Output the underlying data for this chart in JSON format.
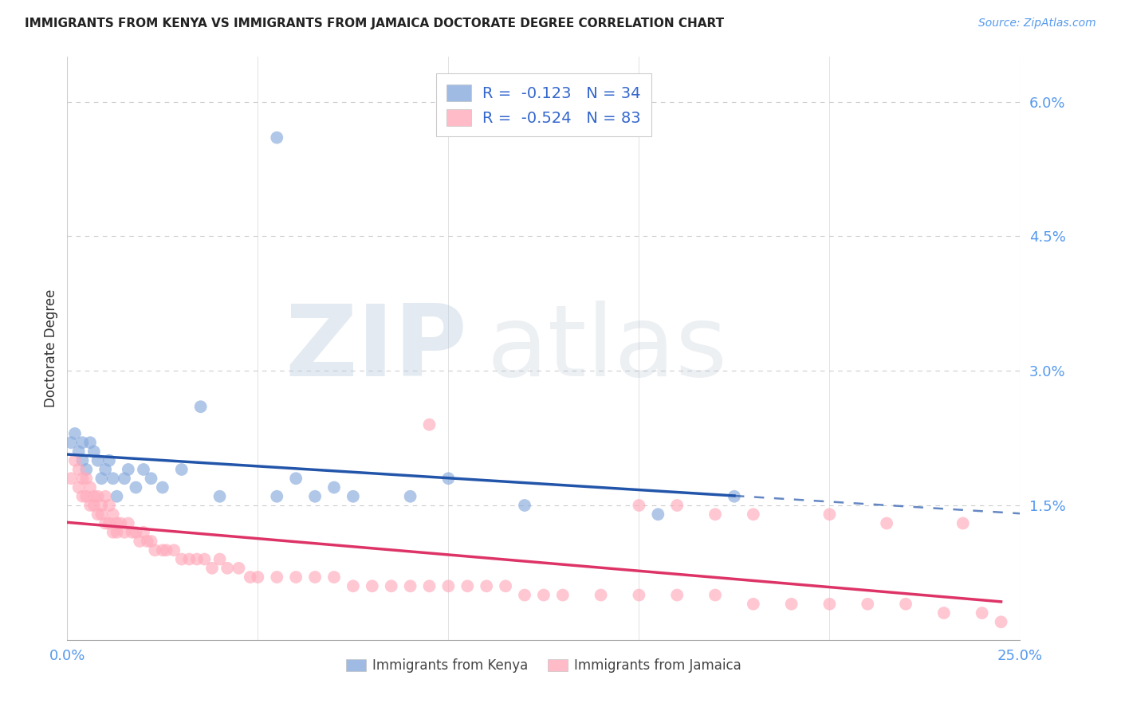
{
  "title": "IMMIGRANTS FROM KENYA VS IMMIGRANTS FROM JAMAICA DOCTORATE DEGREE CORRELATION CHART",
  "source": "Source: ZipAtlas.com",
  "ylabel": "Doctorate Degree",
  "kenya_color": "#88AADD",
  "jamaica_color": "#FFAABB",
  "kenya_trend_color": "#2255AA",
  "jamaica_trend_color": "#DD3366",
  "background_color": "#FFFFFF",
  "xlim": [
    0.0,
    0.25
  ],
  "ylim": [
    0.0,
    0.065
  ],
  "ytick_vals": [
    0.015,
    0.03,
    0.045,
    0.06
  ],
  "ytick_labels": [
    "1.5%",
    "3.0%",
    "4.5%",
    "6.0%"
  ],
  "legend_line1": "R =  -0.123   N = 34",
  "legend_line2": "R =  -0.524   N = 83",
  "kenya_x": [
    0.001,
    0.002,
    0.003,
    0.004,
    0.004,
    0.005,
    0.006,
    0.007,
    0.008,
    0.009,
    0.01,
    0.011,
    0.012,
    0.013,
    0.015,
    0.016,
    0.018,
    0.02,
    0.022,
    0.025,
    0.03,
    0.035,
    0.04,
    0.055,
    0.06,
    0.065,
    0.07,
    0.075,
    0.09,
    0.1,
    0.12,
    0.155,
    0.175,
    0.055
  ],
  "kenya_y": [
    0.022,
    0.023,
    0.021,
    0.02,
    0.022,
    0.019,
    0.022,
    0.021,
    0.02,
    0.018,
    0.019,
    0.02,
    0.018,
    0.016,
    0.018,
    0.019,
    0.017,
    0.019,
    0.018,
    0.017,
    0.019,
    0.026,
    0.016,
    0.016,
    0.018,
    0.016,
    0.017,
    0.016,
    0.016,
    0.018,
    0.015,
    0.014,
    0.016,
    0.056
  ],
  "jamaica_x": [
    0.001,
    0.002,
    0.003,
    0.003,
    0.004,
    0.004,
    0.005,
    0.005,
    0.006,
    0.006,
    0.007,
    0.007,
    0.008,
    0.008,
    0.009,
    0.009,
    0.01,
    0.01,
    0.011,
    0.011,
    0.012,
    0.012,
    0.013,
    0.013,
    0.014,
    0.015,
    0.016,
    0.017,
    0.018,
    0.019,
    0.02,
    0.021,
    0.022,
    0.023,
    0.025,
    0.026,
    0.028,
    0.03,
    0.032,
    0.034,
    0.036,
    0.038,
    0.04,
    0.042,
    0.045,
    0.048,
    0.05,
    0.055,
    0.06,
    0.065,
    0.07,
    0.075,
    0.08,
    0.085,
    0.09,
    0.095,
    0.1,
    0.105,
    0.11,
    0.115,
    0.12,
    0.125,
    0.13,
    0.14,
    0.15,
    0.16,
    0.17,
    0.18,
    0.19,
    0.2,
    0.21,
    0.22,
    0.23,
    0.24,
    0.245,
    0.095,
    0.15,
    0.16,
    0.17,
    0.18,
    0.2,
    0.215,
    0.235
  ],
  "jamaica_y": [
    0.018,
    0.02,
    0.019,
    0.017,
    0.018,
    0.016,
    0.018,
    0.016,
    0.017,
    0.015,
    0.016,
    0.015,
    0.016,
    0.014,
    0.015,
    0.014,
    0.016,
    0.013,
    0.015,
    0.013,
    0.014,
    0.012,
    0.013,
    0.012,
    0.013,
    0.012,
    0.013,
    0.012,
    0.012,
    0.011,
    0.012,
    0.011,
    0.011,
    0.01,
    0.01,
    0.01,
    0.01,
    0.009,
    0.009,
    0.009,
    0.009,
    0.008,
    0.009,
    0.008,
    0.008,
    0.007,
    0.007,
    0.007,
    0.007,
    0.007,
    0.007,
    0.006,
    0.006,
    0.006,
    0.006,
    0.006,
    0.006,
    0.006,
    0.006,
    0.006,
    0.005,
    0.005,
    0.005,
    0.005,
    0.005,
    0.005,
    0.005,
    0.004,
    0.004,
    0.004,
    0.004,
    0.004,
    0.003,
    0.003,
    0.002,
    0.024,
    0.015,
    0.015,
    0.014,
    0.014,
    0.014,
    0.013,
    0.013
  ]
}
